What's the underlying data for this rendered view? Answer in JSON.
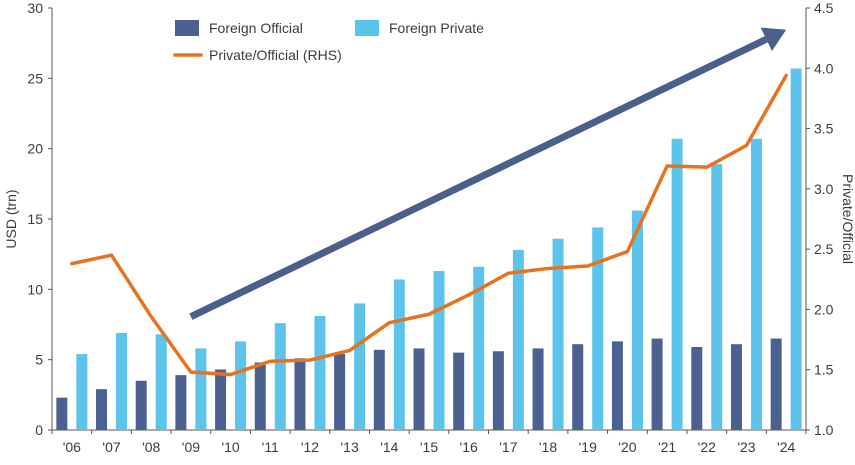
{
  "chart_data": {
    "type": "bar",
    "categories": [
      "'06",
      "'07",
      "'08",
      "'09",
      "'10",
      "'11",
      "'12",
      "'13",
      "'14",
      "'15",
      "'16",
      "'17",
      "'18",
      "'19",
      "'20",
      "'21",
      "'22",
      "'23",
      "'24"
    ],
    "series": [
      {
        "name": "Foreign Official",
        "kind": "bar",
        "axis": "left",
        "color": "#4b6190",
        "values": [
          2.3,
          2.9,
          3.5,
          3.9,
          4.3,
          4.8,
          5.1,
          5.4,
          5.7,
          5.8,
          5.5,
          5.6,
          5.8,
          6.1,
          6.3,
          6.5,
          5.9,
          6.1,
          6.5
        ]
      },
      {
        "name": "Foreign Private",
        "kind": "bar",
        "axis": "left",
        "color": "#5cc4ea",
        "values": [
          5.4,
          6.9,
          6.8,
          5.8,
          6.3,
          7.6,
          8.1,
          9.0,
          10.7,
          11.3,
          11.6,
          12.8,
          13.6,
          14.4,
          15.6,
          20.7,
          18.9,
          20.7,
          25.7
        ]
      },
      {
        "name": "Private/Official (RHS)",
        "kind": "line",
        "axis": "right",
        "color": "#e8731e",
        "values": [
          2.38,
          2.45,
          1.94,
          1.48,
          1.46,
          1.57,
          1.58,
          1.66,
          1.89,
          1.96,
          2.12,
          2.3,
          2.34,
          2.36,
          2.48,
          3.19,
          3.18,
          3.36,
          3.94
        ]
      }
    ],
    "y_left": {
      "label": "USD (trn)",
      "min": 0,
      "max": 30,
      "ticks": [
        "0",
        "5",
        "10",
        "15",
        "20",
        "25",
        "30"
      ]
    },
    "y_right": {
      "label": "Private/Official",
      "min": 1.0,
      "max": 4.5,
      "ticks": [
        "1.0",
        "1.5",
        "2.0",
        "2.5",
        "3.0",
        "3.5",
        "4.0",
        "4.5"
      ]
    },
    "trend_arrow": {
      "color": "#4b5f8c",
      "from": {
        "category": "'09",
        "y_right": 1.94
      },
      "to": {
        "category": "'24",
        "y_right": 4.32
      }
    },
    "legend": {
      "placement": "top-left",
      "items": [
        "Foreign Official",
        "Foreign Private",
        "Private/Official (RHS)"
      ]
    },
    "grid": false,
    "title": ""
  }
}
